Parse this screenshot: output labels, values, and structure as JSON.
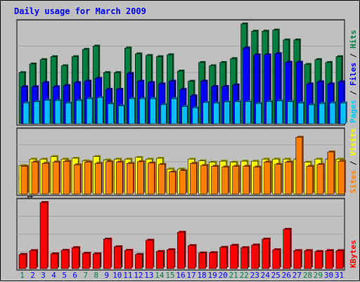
{
  "chart_data": {
    "type": "bar",
    "title": "Daily usage for March 2009",
    "days": [
      "1",
      "2",
      "3",
      "4",
      "5",
      "6",
      "7",
      "8",
      "9",
      "10",
      "11",
      "12",
      "13",
      "14",
      "15",
      "16",
      "17",
      "18",
      "19",
      "20",
      "21",
      "22",
      "23",
      "24",
      "25",
      "26",
      "27",
      "28",
      "29",
      "30",
      "31"
    ],
    "weekend_days": [
      1,
      7,
      8,
      14,
      15,
      21,
      22,
      28,
      29
    ],
    "panels": [
      {
        "id": "hits-files-pages",
        "ymax": 88968,
        "ymax_label": "88968",
        "side_labels": [
          "Pages",
          "Files",
          "Hits"
        ],
        "series": [
          {
            "name": "Hits",
            "color": "#008040",
            "values": [
              45600,
              53300,
              57200,
              59800,
              51700,
              59800,
              66300,
              69200,
              45600,
              45600,
              67500,
              62300,
              60900,
              59800,
              61500,
              47000,
              37900,
              54600,
              51700,
              54600,
              58100,
              89000,
              82500,
              82500,
              83500,
              74700,
              74700,
              52900,
              57200,
              54600,
              59800
            ]
          },
          {
            "name": "Files",
            "color": "#0000ff",
            "values": [
              33000,
              33000,
              36700,
              33000,
              34100,
              36700,
              38000,
              40500,
              30700,
              30700,
              44800,
              37900,
              36700,
              35500,
              37900,
              30600,
              24900,
              38000,
              33200,
              33200,
              34600,
              67500,
              61400,
              61400,
              62500,
              54800,
              54800,
              35500,
              37400,
              35500,
              37400
            ]
          },
          {
            "name": "Pages",
            "color": "#00c0ff",
            "values": [
              18600,
              19700,
              20900,
              20700,
              18500,
              20700,
              22400,
              23300,
              17700,
              15900,
              22400,
              22400,
              22400,
              17000,
              22400,
              15400,
              14200,
              18900,
              18500,
              19500,
              19700,
              19700,
              18100,
              19700,
              20300,
              19700,
              18500,
              16900,
              18100,
              18600,
              18500
            ]
          }
        ]
      },
      {
        "id": "visits-sites",
        "ymax": 3626,
        "ymax_label": "3626",
        "side_labels": [
          "Sites",
          "Visits"
        ],
        "series": [
          {
            "name": "Visits",
            "color": "#ffff00",
            "values": [
              1670,
              2050,
              2050,
              2200,
              2050,
              2100,
              1950,
              2200,
              2000,
              2050,
              2050,
              2150,
              2050,
              2100,
              1470,
              1470,
              2050,
              1950,
              1870,
              1930,
              1870,
              1930,
              1930,
              2050,
              2050,
              2050,
              2050,
              1870,
              2050,
              2050,
              2050
            ]
          },
          {
            "name": "Sites",
            "color": "#ff8000",
            "values": [
              1630,
              1880,
              1800,
              1880,
              1920,
              1720,
              1880,
              1800,
              1900,
              1880,
              1800,
              1900,
              1820,
              1740,
              1300,
              1380,
              1800,
              1680,
              1630,
              1590,
              1630,
              1630,
              1590,
              1880,
              1740,
              1880,
              3330,
              1630,
              1740,
              2470,
              1930
            ]
          }
        ]
      },
      {
        "id": "kbytes",
        "ymax": 2234514,
        "ymax_label": "2234514",
        "side_labels": [
          "KBytes"
        ],
        "series": [
          {
            "name": "KBytes",
            "color": "#ff0000",
            "values": [
              480000,
              610000,
              2234000,
              500000,
              620000,
              710000,
              520000,
              500000,
              1000000,
              740000,
              620000,
              480000,
              960000,
              580000,
              640000,
              1230000,
              780000,
              530000,
              540000,
              720000,
              790000,
              710000,
              800000,
              1000000,
              640000,
              1330000,
              610000,
              610000,
              580000,
              610000,
              610000
            ]
          }
        ]
      }
    ]
  },
  "colors": {
    "background": "#c0c0c0",
    "plot_background": "#c0c0c0",
    "title": "#0000ff",
    "weekday_label": "#0000ff",
    "weekend_label": "#008040",
    "hits": "#008040",
    "files": "#0000ff",
    "pages": "#00c0ff",
    "visits": "#ffff00",
    "sites": "#ff8000",
    "kbytes": "#ff0000"
  }
}
